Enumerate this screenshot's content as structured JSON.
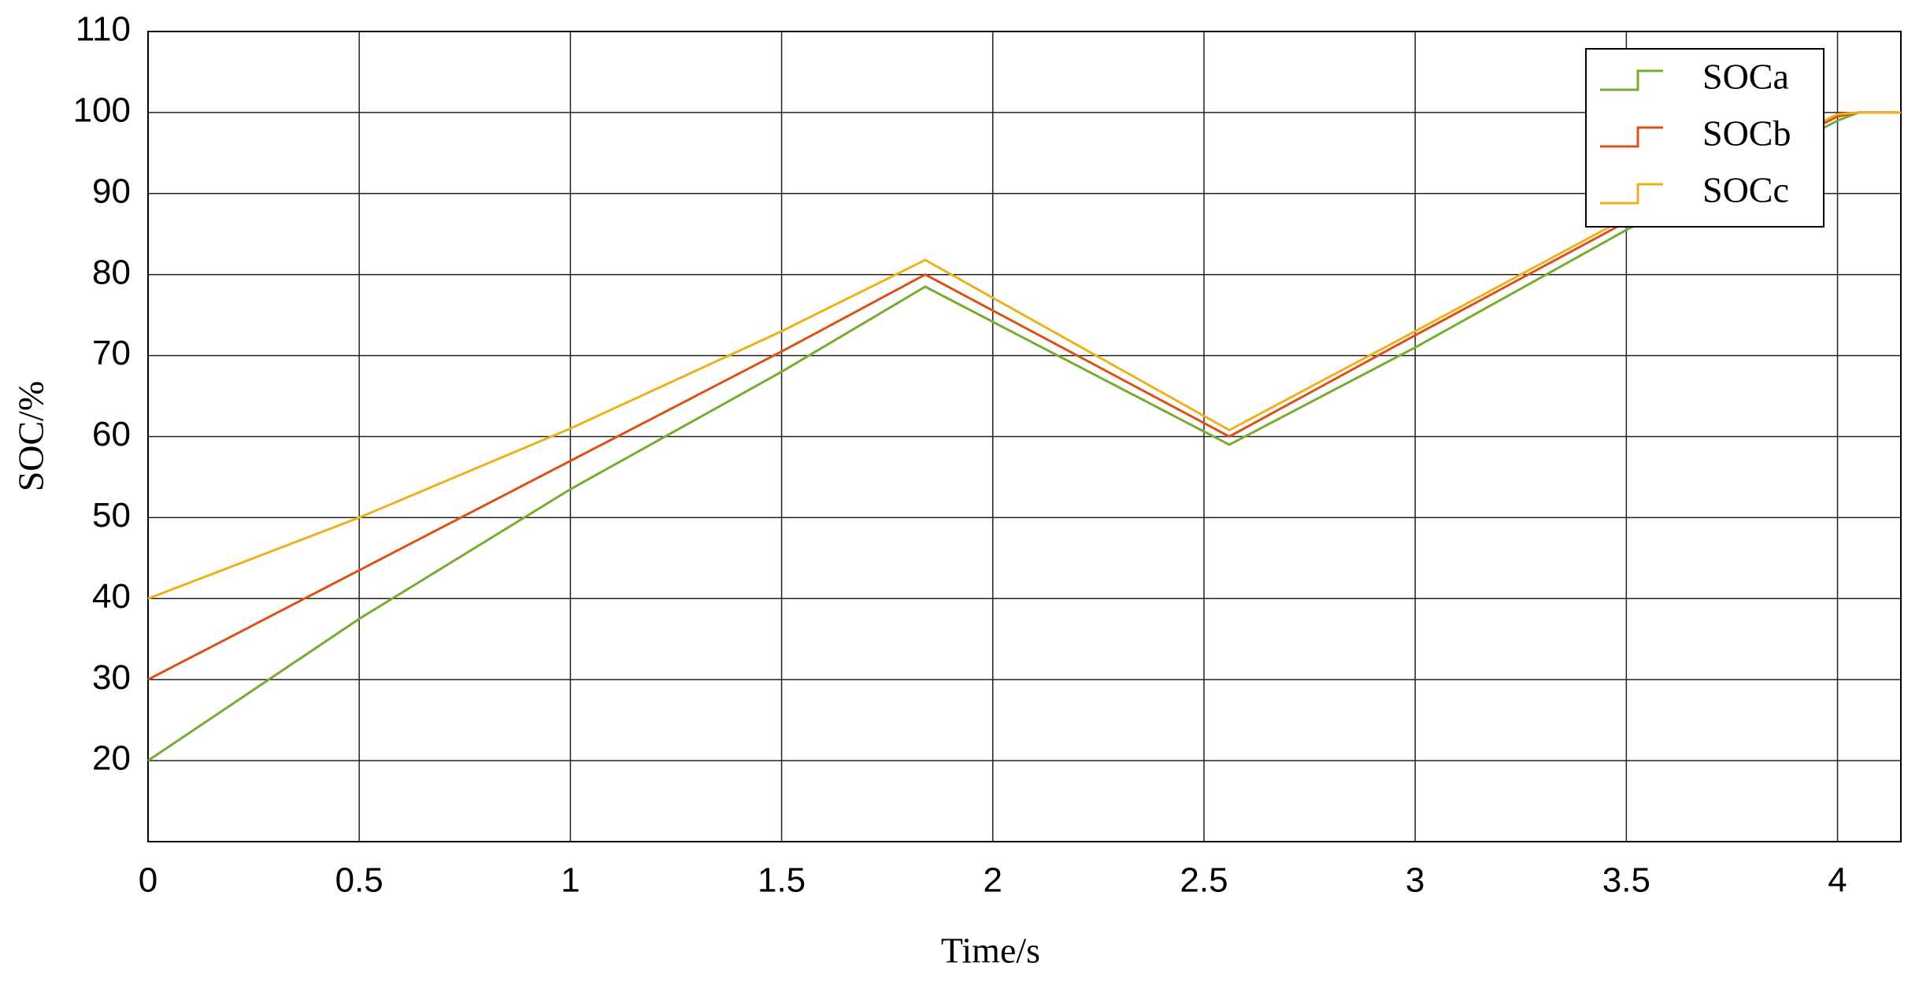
{
  "chart_data": {
    "type": "line",
    "x_label": "Time/s",
    "y_label": "SOC/%",
    "x": [
      0,
      0.5,
      1,
      1.5,
      1.84,
      2.56,
      3,
      3.5,
      4,
      4.05,
      4.15
    ],
    "series": [
      {
        "name": "SOCa",
        "color": "#77ac30",
        "values": [
          20,
          37.5,
          53.5,
          68,
          78.5,
          59,
          71,
          85.5,
          99,
          100,
          100
        ]
      },
      {
        "name": "SOCb",
        "color": "#d95319",
        "values": [
          30,
          43.5,
          57,
          70.5,
          80,
          60,
          72.5,
          86.5,
          99.5,
          100,
          100
        ]
      },
      {
        "name": "SOCc",
        "color": "#edb120",
        "values": [
          40,
          50,
          61,
          73,
          81.8,
          60.8,
          73,
          87,
          99.8,
          100,
          100
        ]
      }
    ],
    "xlim": [
      0,
      4.15
    ],
    "ylim": [
      10,
      110
    ],
    "xticks": [
      0,
      0.5,
      1,
      1.5,
      2,
      2.5,
      3,
      3.5,
      4
    ],
    "yticks": [
      20,
      30,
      40,
      50,
      60,
      70,
      80,
      90,
      100,
      110
    ],
    "grid": true,
    "legend": "top-right"
  }
}
